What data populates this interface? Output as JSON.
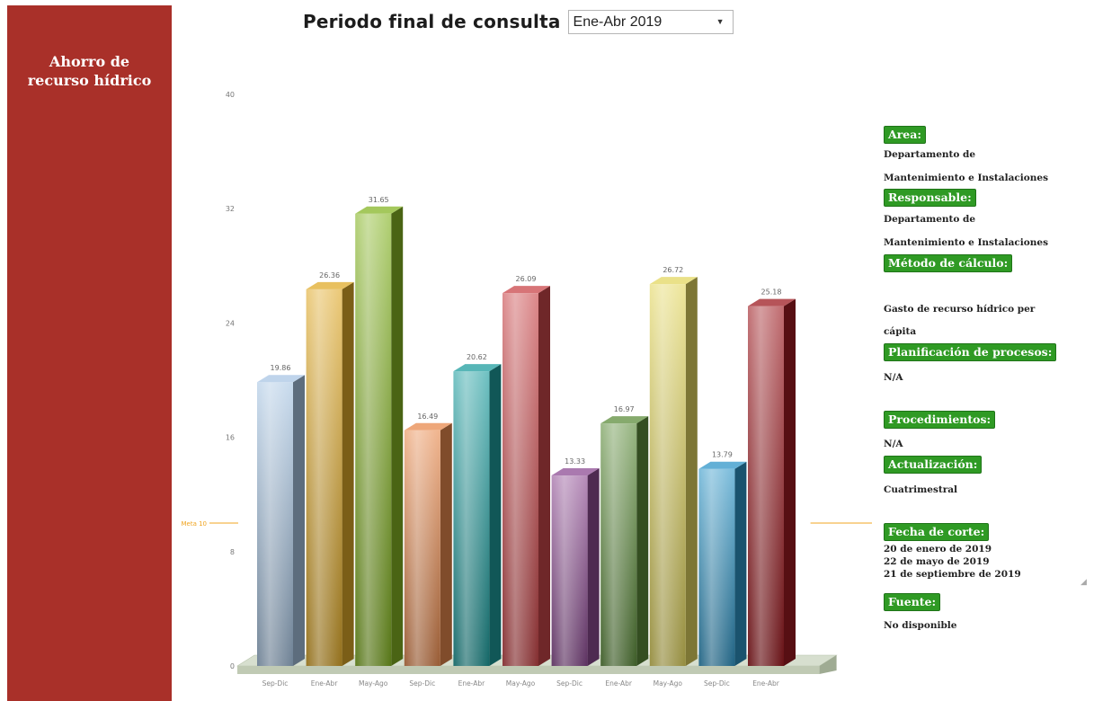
{
  "sidebar": {
    "title_line1": "Ahorro de",
    "title_line2": "recurso hídrico"
  },
  "header": {
    "label": "Periodo final de consulta",
    "selected_period": "Ene-Abr 2019",
    "dropdown_icon": "chevron-down-icon"
  },
  "info": {
    "area_label": "Area:",
    "area_line1": "Departamento de",
    "area_line2": "Mantenimiento e Instalaciones",
    "responsable_label": "Responsable:",
    "responsable_line1": "Departamento de",
    "responsable_line2": "Mantenimiento e Instalaciones",
    "metodo_label": "Método de cálculo:",
    "metodo_line1": "Gasto de recurso hídrico per",
    "metodo_line2": "cápita",
    "planificacion_label": "Planificación de procesos:",
    "planificacion_value": "N/A",
    "procedimientos_label": "Procedimientos:",
    "procedimientos_value": "N/A",
    "actualizacion_label": "Actualización:",
    "actualizacion_value": "Cuatrimestral",
    "fecha_label": "Fecha de corte:",
    "fecha_line1": "20 de enero de 2019",
    "fecha_line2": "22 de mayo de 2019",
    "fecha_line3": "21 de septiembre de 2019",
    "fuente_label": "Fuente:",
    "fuente_value": "No disponible"
  },
  "chart_data": {
    "type": "bar",
    "title": "",
    "xlabel": "",
    "ylabel": "",
    "categories": [
      "Sep-Dic",
      "Ene-Abr",
      "May-Ago",
      "Sep-Dic",
      "Ene-Abr",
      "May-Ago",
      "Sep-Dic",
      "Ene-Abr",
      "May-Ago",
      "Sep-Dic",
      "Ene-Abr"
    ],
    "values": [
      19.86,
      26.36,
      31.65,
      16.49,
      20.62,
      26.09,
      13.33,
      16.97,
      26.72,
      13.79,
      25.18
    ],
    "value_labels": [
      "19.86",
      "26.36",
      "31.65",
      "16.49",
      "20.62",
      "26.09",
      "13.33",
      "16.97",
      "26.72",
      "13.79",
      "25.18"
    ],
    "colors": [
      "#a9c6e4",
      "#e0ab2a",
      "#86b525",
      "#e88a4e",
      "#1f9e9f",
      "#c9464a",
      "#8e4c94",
      "#5e8d3c",
      "#e3d760",
      "#2f96c8",
      "#9e1b22"
    ],
    "yticks": [
      0,
      8,
      16,
      24,
      32,
      40
    ],
    "ytick_labels": [
      "0",
      "8",
      "16",
      "24",
      "32",
      "40"
    ],
    "ylim": [
      0,
      40
    ],
    "target": {
      "value": 10,
      "label": "Meta 10",
      "color": "#f0a420"
    },
    "grid": false,
    "legend": "none"
  }
}
